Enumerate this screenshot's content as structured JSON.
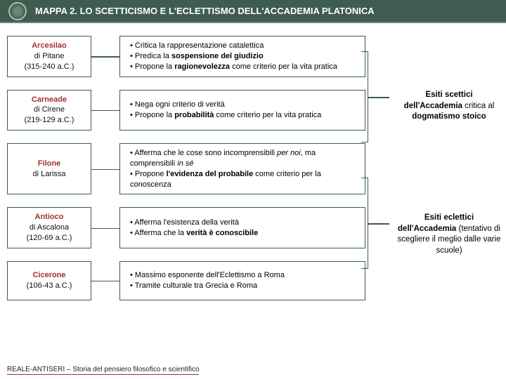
{
  "header": {
    "title": "MAPPA 2. LO SCETTICISMO E L'ECLETTISMO DELL'ACCADEMIA PLATONICA"
  },
  "philosophers": [
    {
      "name": "Arcesilao",
      "origin": "di Pitane",
      "dates": "(315-240 a.C.)",
      "points_html": "<li>Critica la rappresentazione catalettica</li><li>Predica la <strong>sospensione del giudizio</strong></li><li>Propone la <strong>ragionevolezza</strong> come criterio per la vita pratica</li>"
    },
    {
      "name": "Carneade",
      "origin": "di Cirene",
      "dates": "(219-129 a.C.)",
      "points_html": "<li>Nega ogni criterio di verità</li><li>Propone la <strong>probabilità</strong> come criterio per la vita pratica</li>"
    },
    {
      "name": "Filone",
      "origin": "di Larissa",
      "dates": "",
      "points_html": "<li>Afferma che le cose sono incomprensibili <em>per noi</em>, ma comprensibili <em>in sé</em></li><li>Propone <strong>l'evidenza del probabile</strong> come criterio per la conoscenza</li>"
    },
    {
      "name": "Antioco",
      "origin": "di Ascalona",
      "dates": "(120-69 a.C.)",
      "points_html": "<li>Afferma l'esistenza della verità</li><li>Afferma che la <strong>verità è conoscibile</strong></li>"
    },
    {
      "name": "Cicerone",
      "origin": "",
      "dates": "(106-43 a.C.)",
      "points_html": "<li>Massimo esponente dell'Eclettismo a Roma</li><li>Tramite culturale tra Grecia e Roma</li>"
    }
  ],
  "outcomes": {
    "skeptic_html": "<span class='bold'>Esiti scettici dell'Accademia</span> critica al <span class='bold'>dogmatismo stoico</span>",
    "eclectic_html": "<span class='bold'>Esiti eclettici dell'Accademia</span> (tentativo di scegliere il meglio dalle varie scuole)"
  },
  "footer": "REALE-ANTISERI – Storia del pensiero filosofico e scientifico",
  "colors": {
    "border": "#3e5c4f",
    "name": "#a03030",
    "header_bg": "#3e5c4f"
  }
}
